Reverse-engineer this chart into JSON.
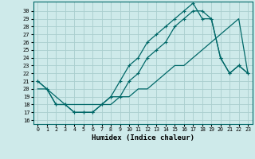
{
  "xlabel": "Humidex (Indice chaleur)",
  "xlim": [
    -0.5,
    23.5
  ],
  "ylim": [
    15.5,
    31.2
  ],
  "xticks": [
    0,
    1,
    2,
    3,
    4,
    5,
    6,
    7,
    8,
    9,
    10,
    11,
    12,
    13,
    14,
    15,
    16,
    17,
    18,
    19,
    20,
    21,
    22,
    23
  ],
  "yticks": [
    16,
    17,
    18,
    19,
    20,
    21,
    22,
    23,
    24,
    25,
    26,
    27,
    28,
    29,
    30
  ],
  "bg_color": "#ceeaea",
  "grid_color": "#aacece",
  "line_color": "#006868",
  "line1_x": [
    0,
    1,
    2,
    3,
    4,
    5,
    6,
    7,
    8,
    9,
    10,
    11,
    12,
    13,
    14,
    15,
    16,
    17,
    18,
    19,
    20,
    21,
    22,
    23
  ],
  "line1_y": [
    21,
    20,
    18,
    18,
    17,
    17,
    17,
    18,
    19,
    21,
    23,
    24,
    26,
    27,
    28,
    29,
    30,
    31,
    29,
    29,
    24,
    22,
    23,
    22
  ],
  "line2_x": [
    0,
    1,
    2,
    3,
    4,
    5,
    6,
    7,
    8,
    9,
    10,
    11,
    12,
    13,
    14,
    15,
    16,
    17,
    18,
    19,
    20,
    21,
    22,
    23
  ],
  "line2_y": [
    21,
    20,
    18,
    18,
    17,
    17,
    17,
    18,
    19,
    19,
    21,
    22,
    24,
    25,
    26,
    28,
    29,
    30,
    30,
    29,
    24,
    22,
    23,
    22
  ],
  "line3_x": [
    0,
    1,
    2,
    3,
    4,
    5,
    6,
    7,
    8,
    9,
    10,
    11,
    12,
    13,
    14,
    15,
    16,
    17,
    18,
    19,
    20,
    21,
    22,
    23
  ],
  "line3_y": [
    20,
    20,
    19,
    18,
    18,
    18,
    18,
    18,
    18,
    19,
    19,
    20,
    20,
    21,
    22,
    23,
    23,
    24,
    25,
    26,
    27,
    28,
    29,
    22
  ]
}
